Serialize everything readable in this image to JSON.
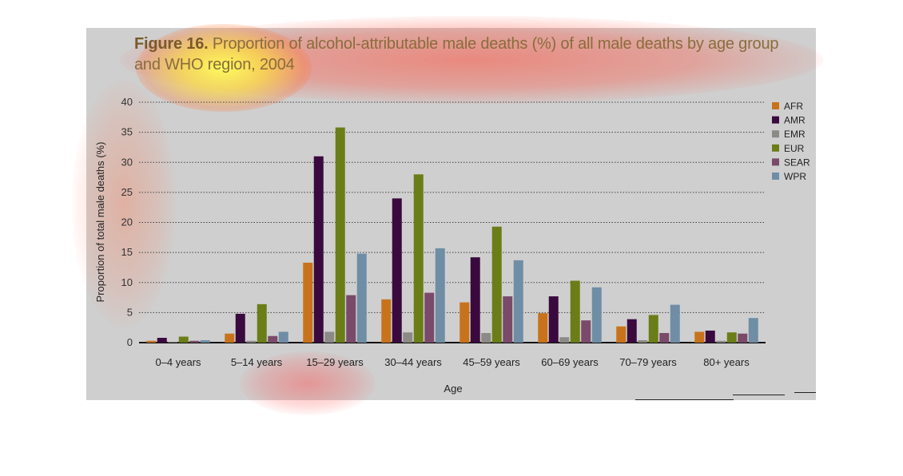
{
  "title": {
    "prefix": "Figure 16.",
    "text": "Proportion of alcohol-attributable male deaths (%) of all male deaths by age group and WHO region, 2004"
  },
  "colors": {
    "AFR": "#c8731b",
    "AMR": "#3a0a3e",
    "EMR": "#8c8a84",
    "EUR": "#6b7d17",
    "SEAR": "#7a4a6a",
    "WPR": "#6f8ea6",
    "background": "#cfcfcf"
  },
  "chart_data": {
    "type": "bar",
    "title": "Figure 16. Proportion of alcohol-attributable male deaths (%) of all male deaths by age group and WHO region, 2004",
    "xlabel": "Age",
    "ylabel": "Proportion of total male deaths (%)",
    "ylim": [
      0,
      40
    ],
    "yticks": [
      0,
      5,
      10,
      15,
      20,
      25,
      30,
      35,
      40
    ],
    "grid": true,
    "legend_position": "top-right",
    "categories": [
      "0–4 years",
      "5–14 years",
      "15–29 years",
      "30–44 years",
      "45–59 years",
      "60–69 years",
      "70–79 years",
      "80+ years"
    ],
    "series": [
      {
        "name": "AFR",
        "values": [
          0.3,
          1.5,
          13.3,
          7.2,
          6.7,
          4.9,
          2.7,
          1.8
        ]
      },
      {
        "name": "AMR",
        "values": [
          0.8,
          4.8,
          31.0,
          24.0,
          14.2,
          7.7,
          3.9,
          2.0
        ]
      },
      {
        "name": "EMR",
        "values": [
          0.1,
          0.3,
          1.8,
          1.7,
          1.6,
          0.9,
          0.4,
          0.3
        ]
      },
      {
        "name": "EUR",
        "values": [
          1.0,
          6.4,
          35.8,
          28.0,
          19.3,
          10.3,
          4.6,
          1.7
        ]
      },
      {
        "name": "SEAR",
        "values": [
          0.3,
          1.1,
          7.9,
          8.3,
          7.7,
          3.7,
          1.6,
          1.5
        ]
      },
      {
        "name": "WPR",
        "values": [
          0.4,
          1.8,
          14.8,
          15.7,
          13.7,
          9.2,
          6.3,
          4.1
        ]
      }
    ]
  }
}
